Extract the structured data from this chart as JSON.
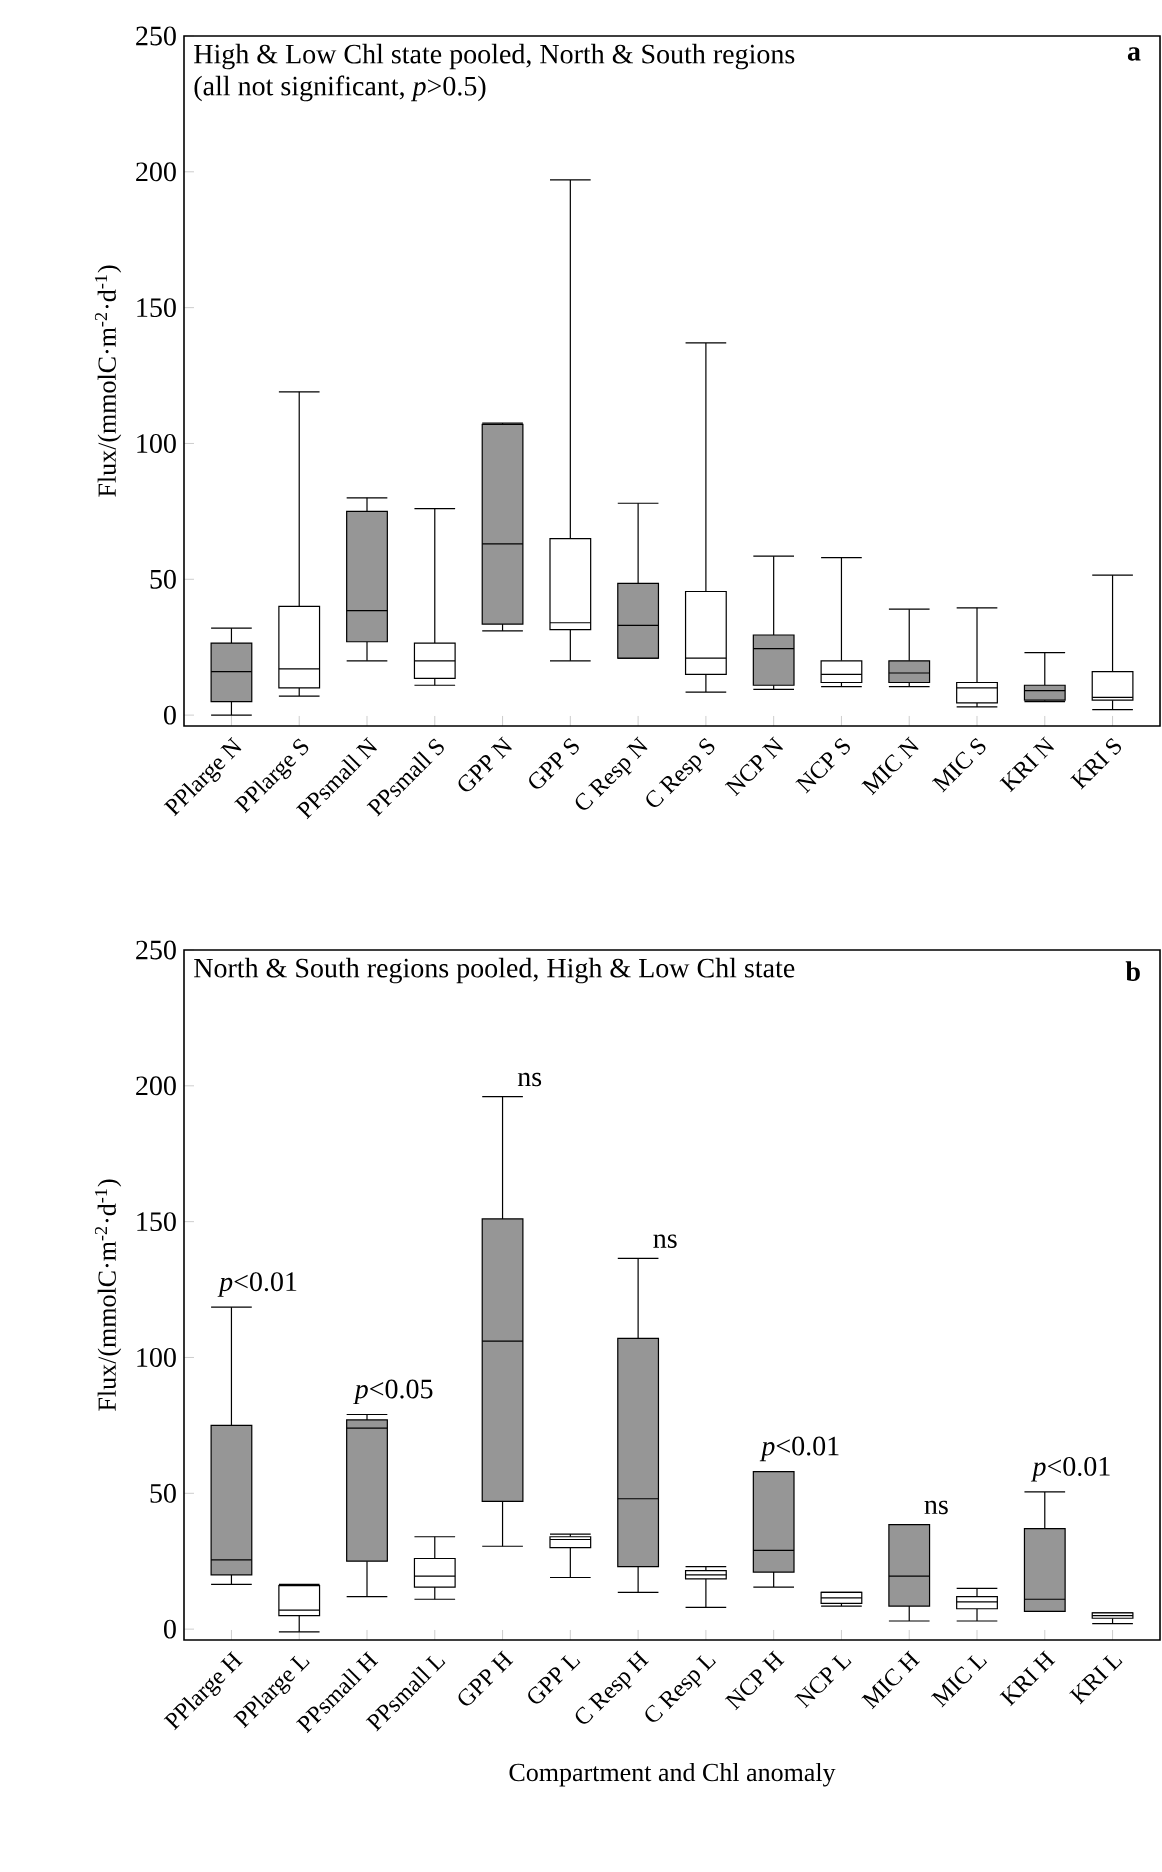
{
  "chart_data": [
    {
      "type": "box",
      "title": "High & Low Chl state pooled, North & South regions",
      "subtitle": "(all not significant, *p*>0.5)",
      "ylabel": "Flux/(mmolC·m$^{-2}$·d$^{-1}$)",
      "categories": [
        "PPlarge N",
        "PPlarge S",
        "PPsmall N",
        "PPsmall S",
        "GPP N",
        "GPP S",
        "C Resp N",
        "C Resp S",
        "NCP N",
        "NCP S",
        "MIC N",
        "MIC S",
        "KRI N",
        "KRI S"
      ],
      "colors": [
        "#969696",
        "#ffffff",
        "#969696",
        "#ffffff",
        "#969696",
        "#ffffff",
        "#969696",
        "#ffffff",
        "#969696",
        "#ffffff",
        "#969696",
        "#ffffff",
        "#969696",
        "#ffffff"
      ],
      "boxes": [
        {
          "low": 0,
          "q1": 5,
          "median": 16,
          "q3": 26.5,
          "high": 32
        },
        {
          "low": 7,
          "q1": 10,
          "median": 17,
          "q3": 40,
          "high": 119
        },
        {
          "low": 20,
          "q1": 27,
          "median": 38.5,
          "q3": 75,
          "high": 80
        },
        {
          "low": 11,
          "q1": 13.5,
          "median": 20,
          "q3": 26.5,
          "high": 76
        },
        {
          "low": 31,
          "q1": 33.5,
          "median": 63,
          "q3": 107,
          "high": 107.5
        },
        {
          "low": 20,
          "q1": 31.5,
          "median": 34,
          "q3": 65,
          "high": 197
        },
        {
          "low": 21,
          "q1": 21,
          "median": 33,
          "q3": 48.5,
          "high": 78
        },
        {
          "low": 8.5,
          "q1": 15,
          "median": 21,
          "q3": 45.5,
          "high": 137
        },
        {
          "low": 9.5,
          "q1": 11,
          "median": 24.5,
          "q3": 29.5,
          "high": 58.5
        },
        {
          "low": 10.5,
          "q1": 12,
          "median": 15,
          "q3": 20,
          "high": 58
        },
        {
          "low": 10.5,
          "q1": 12,
          "median": 15.5,
          "q3": 20,
          "high": 39
        },
        {
          "low": 3,
          "q1": 4.5,
          "median": 10,
          "q3": 12,
          "high": 39.5
        },
        {
          "low": 5,
          "q1": 5.5,
          "median": 9,
          "q3": 11,
          "high": 23
        },
        {
          "low": 2,
          "q1": 5.5,
          "median": 6.5,
          "q3": 16,
          "high": 51.5
        }
      ],
      "ylim": [
        -4,
        250
      ],
      "yticks": [
        0,
        50,
        100,
        150,
        200,
        250
      ],
      "annotations": [
        "a"
      ]
    },
    {
      "type": "box",
      "title": "North & South regions pooled, High & Low Chl state",
      "ylabel": "Flux/(mmolC·m$^{-2}$·d$^{-1}$)",
      "xlabel": "Compartment and Chl anomaly",
      "categories": [
        "PPlarge H",
        "PPlarge L",
        "PPsmall H",
        "PPsmall L",
        "GPP H",
        "GPP L",
        "C Resp H",
        "C Resp L",
        "NCP H",
        "NCP L",
        "MIC H",
        "MIC L",
        "KRI H",
        "KRI L"
      ],
      "colors": [
        "#969696",
        "#ffffff",
        "#969696",
        "#ffffff",
        "#969696",
        "#ffffff",
        "#969696",
        "#ffffff",
        "#969696",
        "#ffffff",
        "#969696",
        "#ffffff",
        "#969696",
        "#ffffff"
      ],
      "boxes": [
        {
          "low": 16.5,
          "q1": 20,
          "median": 25.5,
          "q3": 75,
          "high": 118.5
        },
        {
          "low": -1,
          "q1": 5,
          "median": 7,
          "q3": 16,
          "high": 16.5
        },
        {
          "low": 12,
          "q1": 25,
          "median": 74,
          "q3": 77,
          "high": 79
        },
        {
          "low": 11,
          "q1": 15.5,
          "median": 19.5,
          "q3": 26,
          "high": 34
        },
        {
          "low": 30.5,
          "q1": 47,
          "median": 106,
          "q3": 151,
          "high": 196
        },
        {
          "low": 19,
          "q1": 30,
          "median": 33,
          "q3": 34,
          "high": 35
        },
        {
          "low": 13.5,
          "q1": 23,
          "median": 48,
          "q3": 107,
          "high": 136.5
        },
        {
          "low": 8,
          "q1": 18.5,
          "median": 20,
          "q3": 21.5,
          "high": 23
        },
        {
          "low": 15.5,
          "q1": 21,
          "median": 29,
          "q3": 58,
          "high": 58
        },
        {
          "low": 8.5,
          "q1": 9.5,
          "median": 11.5,
          "q3": 13.5,
          "high": 13.5
        },
        {
          "low": 3,
          "q1": 8.5,
          "median": 19.5,
          "q3": 38.5,
          "high": 38.5
        },
        {
          "low": 3,
          "q1": 7.5,
          "median": 10,
          "q3": 12,
          "high": 15
        },
        {
          "low": 6.5,
          "q1": 6.5,
          "median": 11,
          "q3": 37,
          "high": 50.5
        },
        {
          "low": 2,
          "q1": 4,
          "median": 5,
          "q3": 6,
          "high": 6
        }
      ],
      "ylim": [
        -4,
        250
      ],
      "yticks": [
        0,
        50,
        100,
        150,
        200,
        250
      ],
      "annotations": [
        "b",
        {
          "text": "*p*<0.01",
          "x": "PPlarge H",
          "y": 118.5
        },
        {
          "text": "*p*<0.05",
          "x": "PPsmall H",
          "y": 79
        },
        {
          "text": "ns",
          "x": "GPP H",
          "y": 196
        },
        {
          "text": "ns",
          "x": "C Resp H",
          "y": 136.5
        },
        {
          "text": "*p*<0.01",
          "x": "NCP H",
          "y": 58
        },
        {
          "text": "ns",
          "x": "MIC H",
          "y": 38.5
        },
        {
          "text": "*p*<0.01",
          "x": "KRI H",
          "y": 50.5
        }
      ]
    }
  ]
}
